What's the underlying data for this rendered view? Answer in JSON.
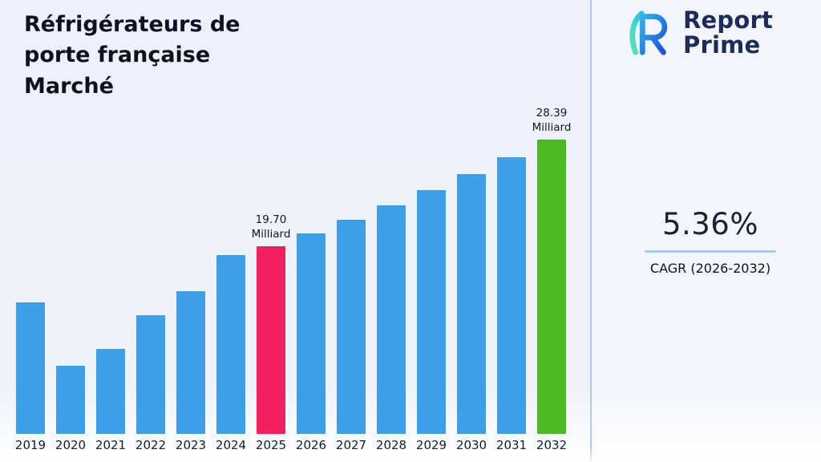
{
  "title": "Réfrigérateurs de porte française Marché",
  "logo": {
    "line1": "Report",
    "line2": "Prime"
  },
  "cagr": {
    "value": "5.36%",
    "label": "CAGR (2026-2032)"
  },
  "chart_data": {
    "type": "bar",
    "title": "Réfrigérateurs de porte française Marché",
    "xlabel": "",
    "ylabel": "",
    "unit": "Milliard",
    "categories": [
      "2019",
      "2020",
      "2021",
      "2022",
      "2023",
      "2024",
      "2025",
      "2026",
      "2027",
      "2028",
      "2029",
      "2030",
      "2031",
      "2032"
    ],
    "values": [
      15.2,
      10.0,
      11.4,
      14.1,
      16.1,
      19.0,
      19.7,
      20.76,
      21.87,
      23.04,
      24.27,
      25.57,
      26.94,
      28.39
    ],
    "value_labels": {
      "2025": {
        "value": "19.70",
        "unit": "Milliard"
      },
      "2032": {
        "value": "28.39",
        "unit": "Milliard"
      }
    },
    "bar_color": "#3d9fe8",
    "highlight_colors": {
      "2025": "#f2205e",
      "2032": "#4cb922"
    },
    "ylim": [
      4.5,
      30
    ],
    "grid": false,
    "legend": false
  }
}
